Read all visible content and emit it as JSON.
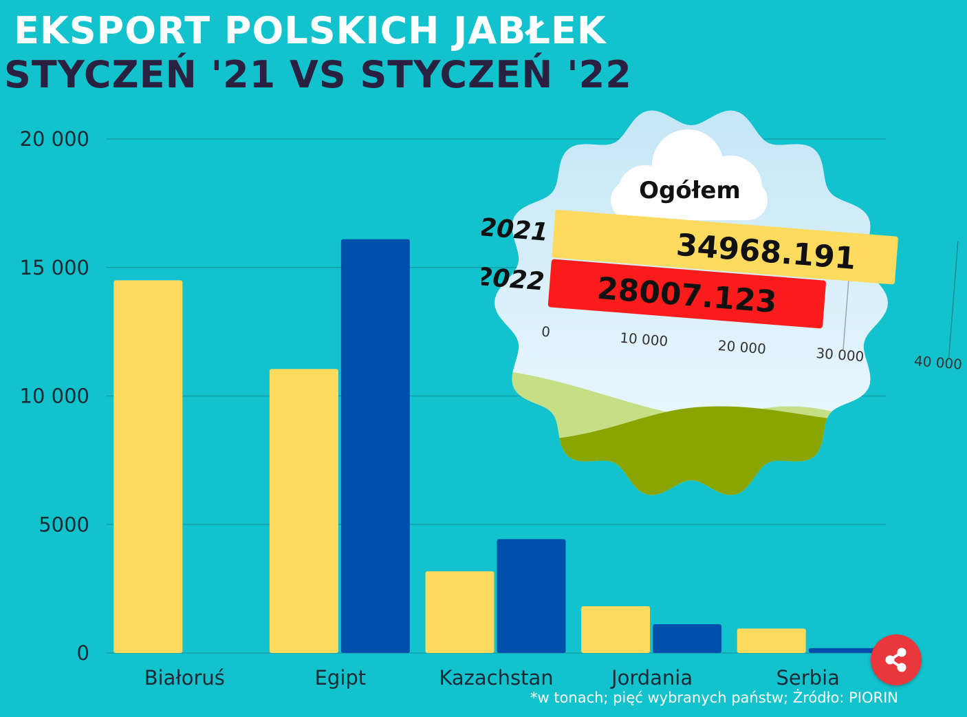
{
  "title_line1": "EKSPORT POLSKICH JABŁEK",
  "title_line2": "STYCZEŃ '21  VS  STYCZEŃ '22",
  "footnote": "*w tonach; pięć wybranych państw; Żródło: PIORIN",
  "colors": {
    "background": "#12c2cc",
    "series_2021": "#fcdb5e",
    "series_2022": "#004fad",
    "total_2022": "#fc1c1c",
    "share_button": "#e8373d"
  },
  "share_button": {
    "icon": "share-icon"
  },
  "chart_data": [
    {
      "type": "bar",
      "categories": [
        "Białoruś",
        "Egipt",
        "Kazachstan",
        "Jordania",
        "Serbia"
      ],
      "series": [
        {
          "values": [
            14500,
            11050,
            3180,
            1820,
            950
          ]
        },
        {
          "values": [
            0,
            16100,
            4430,
            1120,
            190
          ]
        }
      ],
      "yticks": [
        "0",
        "5000",
        "10 000",
        "15 000",
        "20 000"
      ],
      "ylim": [
        0,
        20000
      ],
      "grid": true
    },
    {
      "type": "bar",
      "orientation": "horizontal",
      "title": "Ogółem",
      "categories": [
        "2021",
        "2022"
      ],
      "values": [
        34968.191,
        28007.123
      ],
      "labels": [
        "34968.191",
        "28007.123"
      ],
      "xticks": [
        "0",
        "10 000",
        "20 000",
        "30 000",
        "40 000"
      ],
      "xlim": [
        0,
        40000
      ]
    }
  ]
}
